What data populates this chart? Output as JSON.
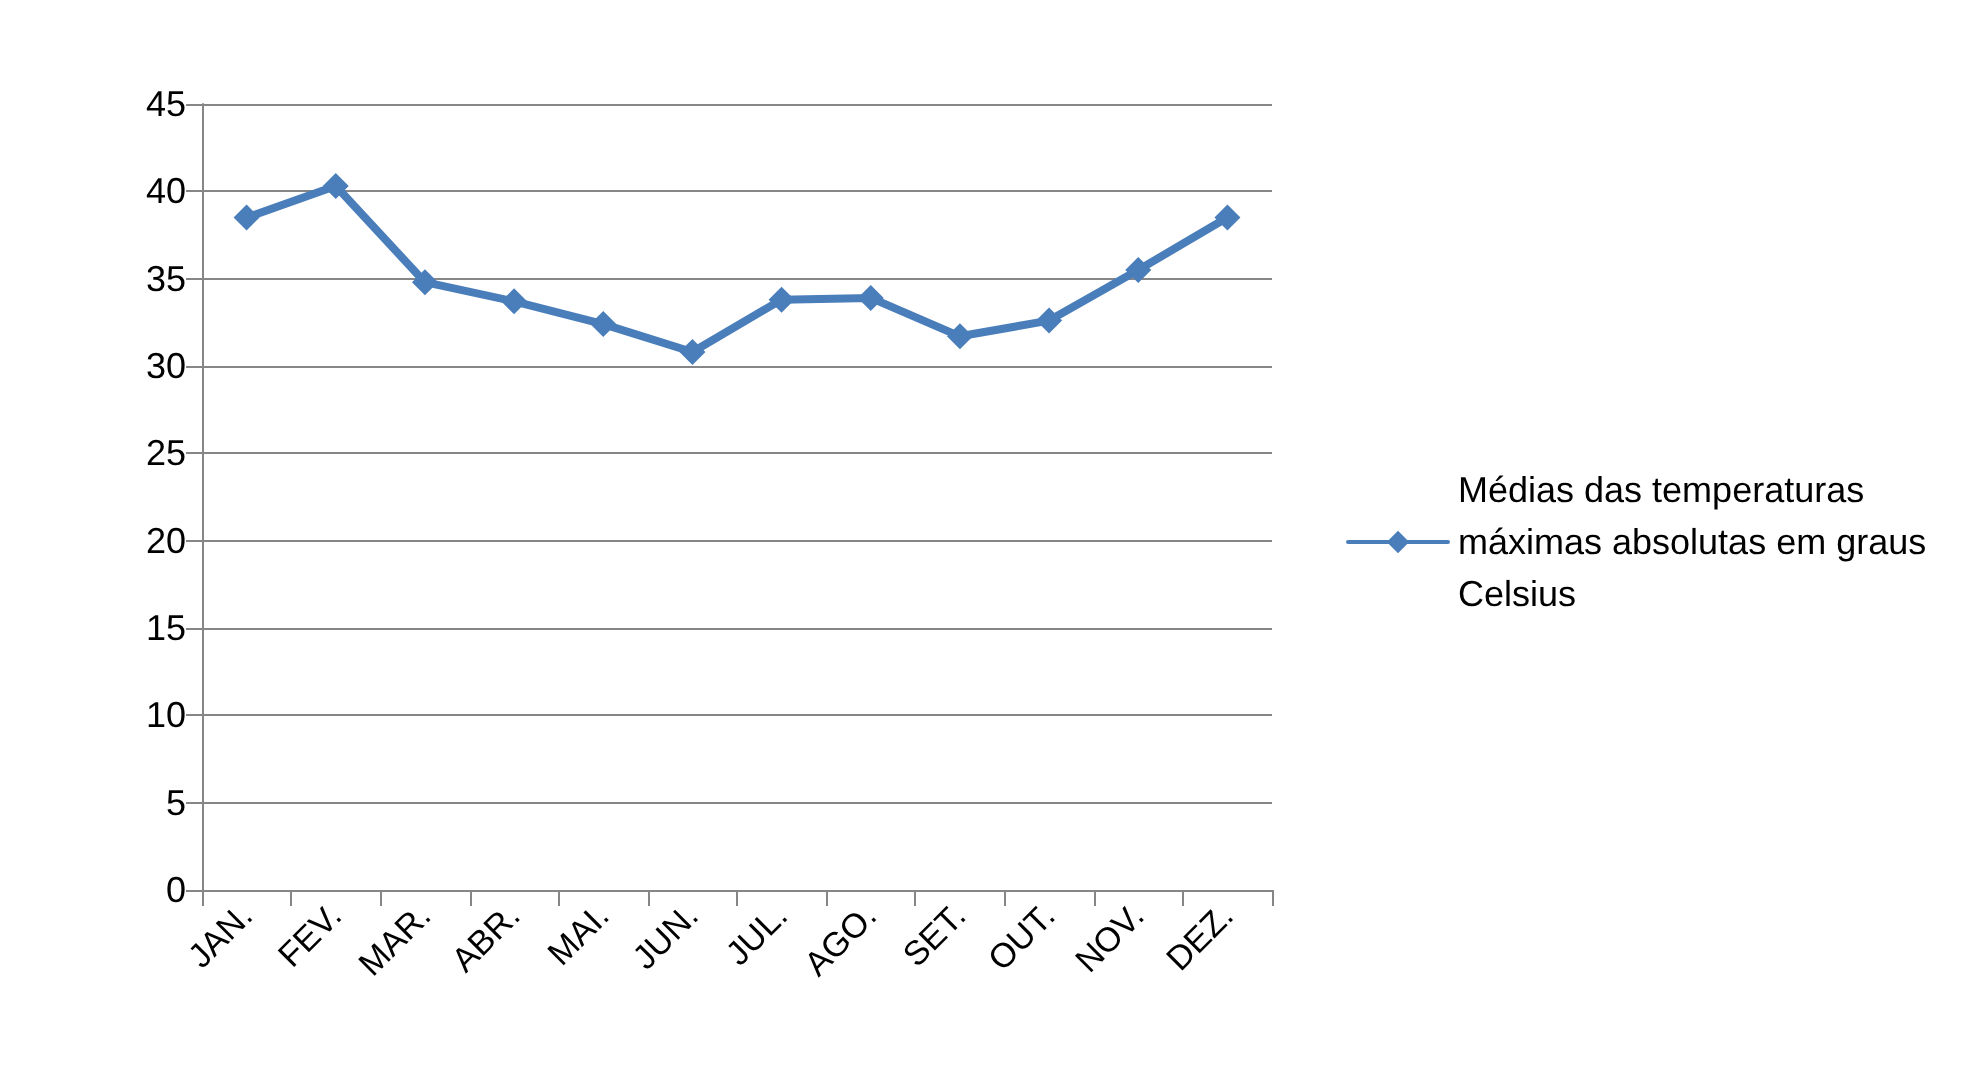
{
  "chart_data": {
    "type": "line",
    "categories": [
      "JAN.",
      "FEV.",
      "MAR.",
      "ABR.",
      "MAI.",
      "JUN.",
      "JUL.",
      "AGO.",
      "SET.",
      "OUT.",
      "NOV.",
      "DEZ."
    ],
    "series": [
      {
        "name": "Médias das temperaturas máximas absolutas em graus Celsius",
        "color": "#4a7ebb",
        "values": [
          38.5,
          40.3,
          34.8,
          33.7,
          32.4,
          30.8,
          33.8,
          33.9,
          31.7,
          32.6,
          35.5,
          38.5
        ]
      }
    ],
    "ylim": [
      0,
      45
    ],
    "yticks": [
      0,
      5,
      10,
      15,
      20,
      25,
      30,
      35,
      40,
      45
    ],
    "grid": "y",
    "legend": "right",
    "marker": "diamond",
    "line_style": "solid"
  }
}
